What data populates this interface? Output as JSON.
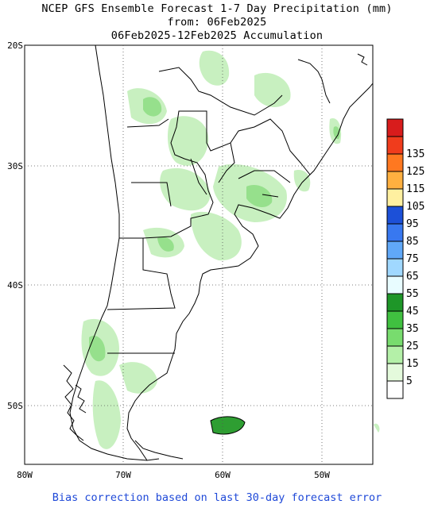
{
  "header": {
    "line1": "NCEP GFS Ensemble Forecast 1-7 Day Precipitation (mm)",
    "line2": "from: 06Feb2025",
    "line3": "06Feb2025-12Feb2025 Accumulation"
  },
  "footer": {
    "note": "Bias correction based on last 30-day forecast error"
  },
  "map": {
    "lon_ticks": [
      "80W",
      "70W",
      "60W",
      "50W"
    ],
    "lat_ticks": [
      "20S",
      "30S",
      "40S",
      "50S"
    ],
    "colors": {
      "land_outline": "#000000",
      "gridline": "#555555",
      "light_green": "#c8f0c0",
      "mid_green": "#96e08c",
      "dark_green": "#2e9e32"
    }
  },
  "legend": {
    "levels": [
      {
        "label": "",
        "color": "#d81c1c"
      },
      {
        "label": "135",
        "color": "#f03c1c"
      },
      {
        "label": "125",
        "color": "#ff7820"
      },
      {
        "label": "115",
        "color": "#ffb040"
      },
      {
        "label": "105",
        "color": "#fff0a0"
      },
      {
        "label": "95",
        "color": "#1c50d8"
      },
      {
        "label": "85",
        "color": "#3878f0"
      },
      {
        "label": "75",
        "color": "#60a8f8"
      },
      {
        "label": "65",
        "color": "#a0d8ff"
      },
      {
        "label": "55",
        "color": "#e8fcff"
      },
      {
        "label": "45",
        "color": "#1e9628"
      },
      {
        "label": "35",
        "color": "#40c040"
      },
      {
        "label": "25",
        "color": "#78dc6e"
      },
      {
        "label": "15",
        "color": "#b4f0a8"
      },
      {
        "label": "5",
        "color": "#e4fadc"
      },
      {
        "label": "",
        "color": "#ffffff"
      }
    ]
  }
}
